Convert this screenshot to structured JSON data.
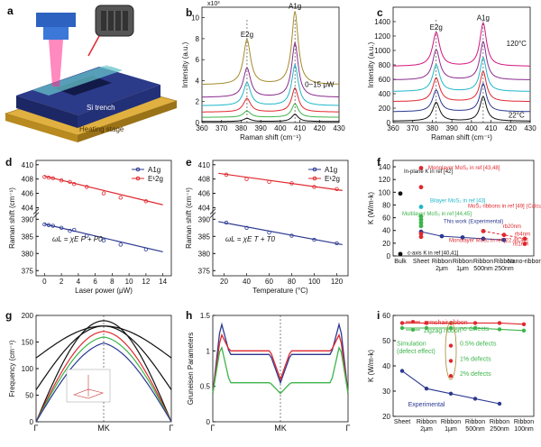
{
  "panel_letters": [
    "a",
    "b",
    "c",
    "d",
    "e",
    "f",
    "g",
    "h",
    "i"
  ],
  "schematic": {
    "laser_label": "Laser",
    "ribbon_label": "MoS2 ribbon",
    "trench_label": "Si trench",
    "stage_label": "Heating stage"
  },
  "colors": {
    "red": "#e0282e",
    "blue": "#2b3990",
    "green": "#3cb44a",
    "magenta": "#d4157f",
    "olive": "#a58a2c",
    "cyan": "#20b6c9",
    "purple": "#8a2c8f",
    "black": "#111111",
    "gray": "#8c8c8c"
  },
  "chart_data": [
    {
      "panel": "b",
      "type": "line",
      "xlabel": "Raman shift (cm⁻¹)",
      "ylabel": "Intensity (a.u.)",
      "xlim": [
        360,
        430
      ],
      "ylim": [
        0,
        11000
      ],
      "scale_note": "x10³",
      "xticks": [
        360,
        370,
        380,
        390,
        400,
        410,
        420,
        430
      ],
      "yticks": [
        0,
        2,
        4,
        6,
        8,
        10
      ],
      "peak_labels": [
        "E2g",
        "A1g"
      ],
      "peak_positions": [
        383,
        407.5
      ],
      "annotation": "0~15 μW",
      "series": [
        {
          "color": "olive",
          "baseline": 3.6,
          "e2g_height": 4.3,
          "a1g_height": 7.0
        },
        {
          "color": "purple",
          "baseline": 2.4,
          "e2g_height": 2.8,
          "a1g_height": 5.2
        },
        {
          "color": "cyan",
          "baseline": 1.6,
          "e2g_height": 2.2,
          "a1g_height": 3.9
        },
        {
          "color": "red",
          "baseline": 1.0,
          "e2g_height": 1.3,
          "a1g_height": 2.3
        },
        {
          "color": "green",
          "baseline": 0.5,
          "e2g_height": 0.6,
          "a1g_height": 1.3
        },
        {
          "color": "black",
          "baseline": 0.1,
          "e2g_height": 0.3,
          "a1g_height": 0.7
        }
      ]
    },
    {
      "panel": "c",
      "type": "line",
      "xlabel": "Raman shift (cm⁻¹)",
      "ylabel": "Intensity (a.u.)",
      "xlim": [
        360,
        430
      ],
      "ylim": [
        0,
        1600
      ],
      "xticks": [
        360,
        370,
        380,
        390,
        400,
        410,
        420,
        430
      ],
      "yticks": [
        0,
        200,
        400,
        600,
        800,
        1000,
        1200,
        1400
      ],
      "peak_labels": [
        "E2g",
        "A1g"
      ],
      "peak_positions": [
        382,
        406
      ],
      "annotations": [
        "120°C",
        "22°C"
      ],
      "series": [
        {
          "color": "magenta",
          "baseline": 780,
          "e2g_height": 470,
          "a1g_height": 600
        },
        {
          "color": "purple",
          "baseline": 590,
          "e2g_height": 420,
          "a1g_height": 530
        },
        {
          "color": "cyan",
          "baseline": 430,
          "e2g_height": 370,
          "a1g_height": 470
        },
        {
          "color": "red",
          "baseline": 290,
          "e2g_height": 330,
          "a1g_height": 420
        },
        {
          "color": "blue",
          "baseline": 150,
          "e2g_height": 300,
          "a1g_height": 390
        },
        {
          "color": "black",
          "baseline": 20,
          "e2g_height": 260,
          "a1g_height": 340
        }
      ]
    },
    {
      "panel": "d",
      "type": "scatter",
      "xlabel": "Laser power (μW)",
      "ylabel": "Raman shift (cm⁻¹)",
      "xlim": [
        -1,
        15
      ],
      "xticks": [
        0,
        2,
        4,
        6,
        8,
        10,
        12,
        14
      ],
      "yticks_top": [
        404,
        406,
        408,
        410
      ],
      "yticks_bottom": [
        375,
        380,
        385,
        390
      ],
      "legend": [
        "A1g",
        "E¹2g"
      ],
      "equation": "ωL = χE P + P0",
      "series": [
        {
          "name": "A1g",
          "color": "blue",
          "axis": "bottom",
          "x": [
            0,
            0.5,
            1,
            2,
            3,
            3.5,
            5,
            7,
            9,
            12
          ],
          "y": [
            388.5,
            388.3,
            388.1,
            387.5,
            386.6,
            386.9,
            385.2,
            383.8,
            382.6,
            381.2
          ],
          "fit": [
            [
              0,
              388.6
            ],
            [
              14,
              380.5
            ]
          ]
        },
        {
          "name": "E¹2g",
          "color": "red",
          "axis": "top",
          "x": [
            0,
            0.5,
            1,
            2,
            3,
            3.5,
            5,
            7,
            9,
            12
          ],
          "y": [
            408.3,
            408.2,
            408.1,
            407.8,
            407.6,
            407.3,
            406.9,
            406.0,
            405.4,
            404.9
          ],
          "fit": [
            [
              0,
              408.4
            ],
            [
              14,
              404.4
            ]
          ]
        }
      ]
    },
    {
      "panel": "e",
      "type": "scatter",
      "xlabel": "Temperature (°C)",
      "ylabel": "Raman shift (cm⁻¹)",
      "xlim": [
        10,
        130
      ],
      "xticks": [
        20,
        40,
        60,
        80,
        100,
        120
      ],
      "yticks_top": [
        404,
        406,
        408,
        410
      ],
      "yticks_bottom": [
        375,
        380,
        385,
        390
      ],
      "legend": [
        "A1g",
        "E¹2g"
      ],
      "equation": "ωL = χE T + T0",
      "series": [
        {
          "name": "A1g",
          "color": "blue",
          "axis": "bottom",
          "x": [
            22,
            40,
            60,
            80,
            100,
            120
          ],
          "y": [
            389.0,
            387.5,
            386.1,
            385.2,
            384.0,
            383.0
          ],
          "fit": [
            [
              15,
              389.3
            ],
            [
              125,
              382.6
            ]
          ]
        },
        {
          "name": "E¹2g",
          "color": "red",
          "axis": "top",
          "x": [
            22,
            40,
            60,
            80,
            100,
            120
          ],
          "y": [
            408.6,
            408.0,
            407.6,
            407.4,
            406.9,
            406.6
          ],
          "fit": [
            [
              15,
              408.8
            ],
            [
              125,
              406.4
            ]
          ]
        }
      ]
    },
    {
      "panel": "f",
      "type": "scatter",
      "ylabel": "K (W/m-k)",
      "ylim": [
        0,
        150
      ],
      "yticks": [
        0,
        20,
        40,
        60,
        80,
        100,
        120,
        140
      ],
      "categories": [
        "Bulk",
        "Sheet",
        "Ribbon 2μm",
        "Ribbon 1μm",
        "Ribbon 500nm",
        "Ribbon 250nm",
        "Nano-ribbon"
      ],
      "annotations": [
        "In-plane K in ref [42]",
        "Monolayer MoS₂ in ref [43,48]",
        "Bilayer MoS₂ in ref [43]",
        "Multilayer MoS₂ in ref [44,45]",
        "This work (Experimental)",
        "MoS₂ ribbons in ref [49] (Calculated)",
        "Monolayer MoS₂ in ref [22,46,47]",
        "c-axis K in ref [40,41]",
        "rb20nm",
        "rb4nm",
        "rb1nm"
      ],
      "series": [
        {
          "name": "In-plane K",
          "color": "black",
          "x": [
            0
          ],
          "y": [
            98
          ]
        },
        {
          "name": "c-axis K",
          "color": "black",
          "x": [
            0
          ],
          "y": [
            3
          ]
        },
        {
          "name": "Monolayer ref 43,48",
          "color": "red",
          "x": [
            1,
            1
          ],
          "y": [
            138,
            108
          ]
        },
        {
          "name": "Bilayer",
          "color": "cyan",
          "x": [
            1
          ],
          "y": [
            77
          ]
        },
        {
          "name": "Multilayer",
          "color": "green",
          "x": [
            1,
            1,
            1,
            1
          ],
          "y": [
            62,
            57,
            52,
            47
          ]
        },
        {
          "name": "This work",
          "color": "blue",
          "x": [
            1,
            2,
            3,
            4,
            5
          ],
          "y": [
            38,
            31,
            29,
            27,
            25
          ]
        },
        {
          "name": "Monolayer ref 22,46,47",
          "color": "red",
          "x": [
            1,
            1
          ],
          "y": [
            35,
            30
          ]
        },
        {
          "name": "MoS2 ribbons ref 49",
          "color": "red",
          "x": [
            4,
            5,
            6,
            6
          ],
          "y": [
            39,
            33,
            27,
            19
          ]
        }
      ]
    },
    {
      "panel": "g",
      "type": "line",
      "ylabel": "Frequency (cm⁻¹)",
      "ylim": [
        0,
        200
      ],
      "yticks": [
        0,
        50,
        100,
        150,
        200
      ],
      "xticklabels": [
        "Γ",
        "MK",
        "Γ"
      ]
    },
    {
      "panel": "h",
      "type": "line",
      "ylabel": "Gruneisen Parameters",
      "ylim": [
        0,
        1.5
      ],
      "yticks": [
        0,
        0.5,
        1,
        1.5
      ],
      "xticklabels": [
        "Γ",
        "MK",
        "Γ"
      ]
    },
    {
      "panel": "i",
      "type": "line",
      "ylabel": "K (W/m-k)",
      "ylim": [
        20,
        60
      ],
      "yticks": [
        20,
        30,
        40,
        50,
        60
      ],
      "categories": [
        "Sheet",
        "Ribbon 2μm",
        "Ribbon 1μm",
        "Ribbon 500nm",
        "Ribbon 250nm",
        "Ribbon 100nm"
      ],
      "legend": [
        "armchair ribbon",
        "zigzag ribbon"
      ],
      "annotations": [
        "no defects",
        "0.5% defects",
        "1% defects",
        "2% defects",
        "Simulation (defect effect)",
        "Experimental"
      ],
      "series": [
        {
          "name": "armchair ribbon",
          "color": "red",
          "x": [
            0,
            1,
            2,
            3,
            4,
            5
          ],
          "y": [
            57,
            57,
            57,
            57,
            57,
            56.5
          ]
        },
        {
          "name": "zigzag ribbon",
          "color": "green",
          "x": [
            0,
            1,
            2,
            3,
            4,
            5
          ],
          "y": [
            55,
            55,
            55,
            55,
            54.5,
            54
          ]
        },
        {
          "name": "Experimental",
          "color": "blue",
          "x": [
            0,
            1,
            2,
            3,
            4
          ],
          "y": [
            38,
            31,
            29,
            27,
            25
          ]
        },
        {
          "name": "defects",
          "color": "red",
          "x": [
            2,
            2,
            2
          ],
          "y": [
            48,
            42,
            36
          ]
        }
      ]
    }
  ]
}
